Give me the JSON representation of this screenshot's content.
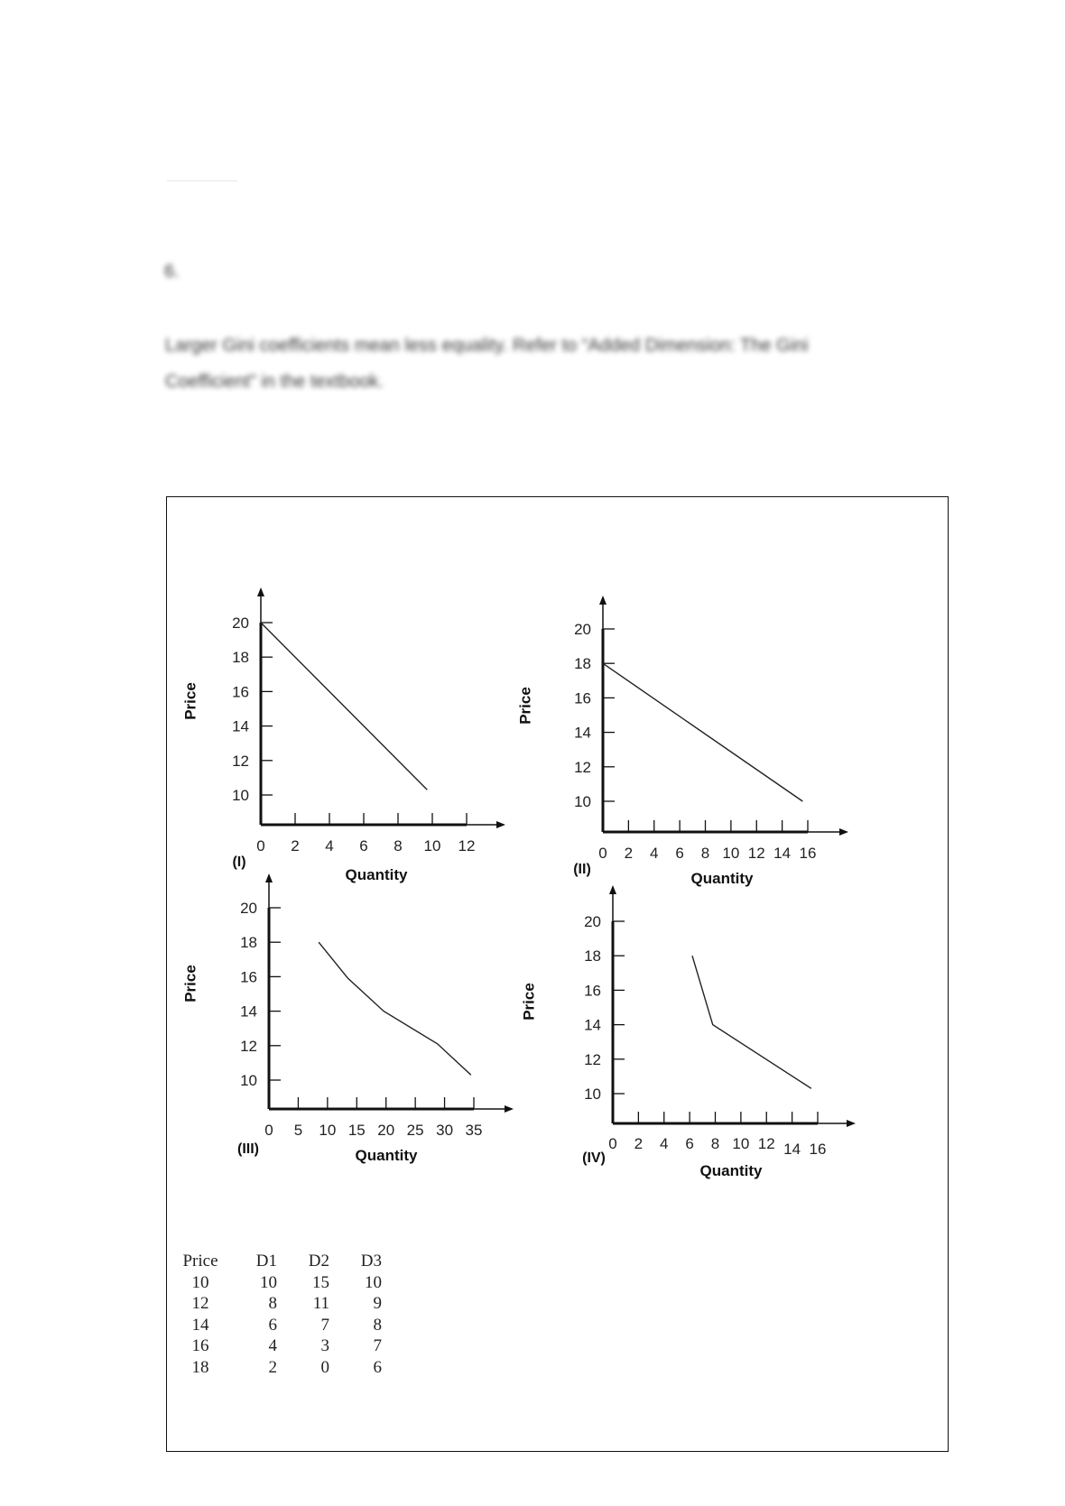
{
  "document": {
    "question_number": "6.",
    "answer_lines": [
      "Larger Gini coefficients mean less equality. Refer to “Added Dimension: The Gini",
      "Coefficient” in the textbook."
    ],
    "table": {
      "headers": [
        "Price",
        "D1",
        "D2",
        "D3"
      ],
      "rows": [
        [
          "10",
          "10",
          "15",
          "10"
        ],
        [
          "12",
          "8",
          "11",
          "9"
        ],
        [
          "14",
          "6",
          "7",
          "8"
        ],
        [
          "16",
          "4",
          "3",
          "7"
        ],
        [
          "18",
          "2",
          "0",
          "6"
        ]
      ]
    }
  },
  "chart_data": [
    {
      "type": "line",
      "panel_label": "(I)",
      "xlabel": "Quantity",
      "ylabel": "Price",
      "xticks": [
        "0",
        "2",
        "4",
        "6",
        "8",
        "10",
        "12"
      ],
      "xtick_values": [
        0,
        2,
        4,
        6,
        8,
        10,
        12
      ],
      "yticks": [
        "10",
        "12",
        "14",
        "16",
        "18",
        "20"
      ],
      "ytick_values": [
        10,
        12,
        14,
        16,
        18,
        20
      ],
      "xlim": [
        0,
        12
      ],
      "ylim": [
        10,
        20
      ],
      "grid": false,
      "series": [
        {
          "points": [
            [
              0,
              20
            ],
            [
              9.7,
              10.3
            ]
          ]
        }
      ]
    },
    {
      "type": "line",
      "panel_label": "(II)",
      "xlabel": "Quantity",
      "ylabel": "Price",
      "xticks": [
        "0",
        "2",
        "4",
        "6",
        "8",
        "10",
        "12",
        "14",
        "16"
      ],
      "xtick_values": [
        0,
        2,
        4,
        6,
        8,
        10,
        12,
        14,
        16
      ],
      "yticks": [
        "10",
        "12",
        "14",
        "16",
        "18",
        "20"
      ],
      "ytick_values": [
        10,
        12,
        14,
        16,
        18,
        20
      ],
      "xlim": [
        0,
        16
      ],
      "ylim": [
        10,
        20
      ],
      "grid": false,
      "series": [
        {
          "points": [
            [
              0,
              18
            ],
            [
              15.6,
              10
            ]
          ]
        }
      ]
    },
    {
      "type": "line",
      "panel_label": "(III)",
      "xlabel": "Quantity",
      "ylabel": "Price",
      "xticks": [
        "0",
        "5",
        "10",
        "15",
        "20",
        "25",
        "30",
        "35"
      ],
      "xtick_values": [
        0,
        5,
        10,
        15,
        20,
        25,
        30,
        35
      ],
      "yticks": [
        "10",
        "12",
        "14",
        "16",
        "18",
        "20"
      ],
      "ytick_values": [
        10,
        12,
        14,
        16,
        18,
        20
      ],
      "xlim": [
        0,
        35
      ],
      "ylim": [
        10,
        20
      ],
      "grid": false,
      "series": [
        {
          "points": [
            [
              8.5,
              18
            ],
            [
              13.5,
              15.9
            ],
            [
              19.6,
              14
            ],
            [
              28.8,
              12.1
            ],
            [
              34.5,
              10.3
            ]
          ]
        }
      ]
    },
    {
      "type": "line",
      "panel_label": "(IV)",
      "xlabel": "Quantity",
      "ylabel": "Price",
      "xticks": [
        "0",
        "2",
        "4",
        "6",
        "8",
        "10",
        "12",
        "14",
        "16"
      ],
      "xtick_values": [
        0,
        2,
        4,
        6,
        8,
        10,
        12,
        14,
        16
      ],
      "yticks": [
        "10",
        "12",
        "14",
        "16",
        "18",
        "20"
      ],
      "ytick_values": [
        10,
        12,
        14,
        16,
        18,
        20
      ],
      "xlim": [
        0,
        16
      ],
      "ylim": [
        10,
        20
      ],
      "grid": false,
      "series": [
        {
          "points": [
            [
              6.2,
              18
            ],
            [
              7.8,
              14
            ],
            [
              15.5,
              10.3
            ]
          ]
        }
      ]
    }
  ]
}
